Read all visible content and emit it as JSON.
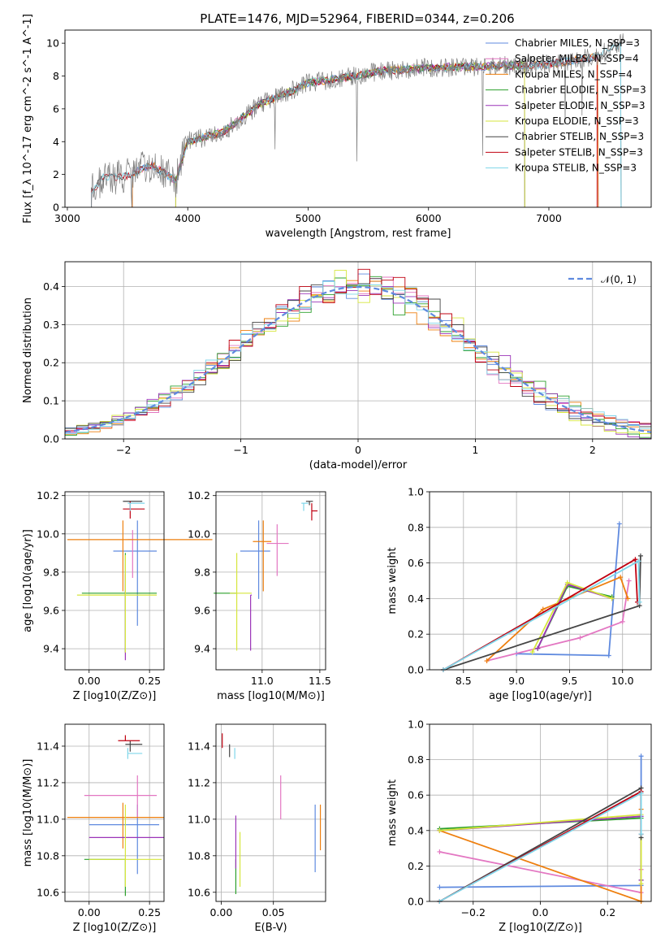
{
  "title": "PLATE=1476, MJD=52964, FIBERID=0344, z=0.206",
  "colors": {
    "chabrier_miles": "#5f8adf",
    "salpeter_miles": "#e377c2",
    "kroupa_miles": "#ee7f0e",
    "chabrier_elodie": "#2ca02c",
    "salpeter_elodie": "#9b34b8",
    "kroupa_elodie": "#d6e63d",
    "chabrier_stelib": "#454545",
    "salpeter_stelib": "#c00010",
    "kroupa_stelib": "#7fd6ea",
    "data": "#7f7f7f"
  },
  "chart_data": [
    {
      "id": "spectrum",
      "type": "line",
      "xlabel": "wavelength [Angstrom, rest frame]",
      "ylabel": "Flux [f_λ 10^-17 erg cm^-2 s^-1 A^-1]",
      "xlim": [
        2980,
        7850
      ],
      "ylim": [
        0,
        10.8
      ],
      "xticks": [
        3000,
        4000,
        5000,
        6000,
        7000
      ],
      "yticks": [
        0,
        2,
        4,
        6,
        8,
        10
      ],
      "continuum": [
        [
          3200,
          1.0
        ],
        [
          3300,
          1.8
        ],
        [
          3500,
          1.9
        ],
        [
          3700,
          2.6
        ],
        [
          3900,
          1.6
        ],
        [
          4000,
          4.0
        ],
        [
          4300,
          4.6
        ],
        [
          4600,
          6.3
        ],
        [
          4900,
          7.2
        ],
        [
          5000,
          7.6
        ],
        [
          5300,
          7.9
        ],
        [
          5600,
          8.3
        ],
        [
          6000,
          8.5
        ],
        [
          6500,
          8.6
        ],
        [
          7000,
          8.7
        ],
        [
          7400,
          9.2
        ],
        [
          7600,
          10.0
        ]
      ],
      "legend": [
        {
          "label": "Chabrier MILES, N_SSP=3",
          "color_key": "chabrier_miles"
        },
        {
          "label": "Salpeter MILES, N_SSP=4",
          "color_key": "salpeter_miles"
        },
        {
          "label": "Kroupa MILES, N_SSP=4",
          "color_key": "kroupa_miles"
        },
        {
          "label": "Chabrier ELODIE, N_SSP=3",
          "color_key": "chabrier_elodie"
        },
        {
          "label": "Salpeter ELODIE, N_SSP=3",
          "color_key": "salpeter_elodie"
        },
        {
          "label": "Kroupa ELODIE, N_SSP=3",
          "color_key": "kroupa_elodie"
        },
        {
          "label": "Chabrier STELIB, N_SSP=3",
          "color_key": "chabrier_stelib"
        },
        {
          "label": "Salpeter STELIB, N_SSP=3",
          "color_key": "salpeter_stelib"
        },
        {
          "label": "Kroupa STELIB, N_SSP=3",
          "color_key": "kroupa_stelib"
        }
      ]
    },
    {
      "id": "residuals",
      "type": "line",
      "xlabel": "(data-model)/error",
      "ylabel": "Normed distribution",
      "xlim": [
        -2.5,
        2.5
      ],
      "ylim": [
        0,
        0.465
      ],
      "xticks": [
        -2,
        -1,
        0,
        1,
        2
      ],
      "yticks": [
        0.0,
        0.1,
        0.2,
        0.3,
        0.4
      ],
      "grid": true,
      "legend": [
        {
          "label": "𝒩(0, 1)",
          "color_key": "chabrier_miles",
          "style": "dashed"
        }
      ]
    },
    {
      "id": "age_vs_Z",
      "type": "scatter",
      "xlabel": "Z [log10(Z/Z⊙)]",
      "ylabel": "age [log10(age/yr)]",
      "xlim": [
        -0.1,
        0.31
      ],
      "ylim": [
        9.29,
        10.22
      ],
      "xticks": [
        0.0,
        0.25
      ],
      "yticks": [
        9.4,
        9.6,
        9.8,
        10.0,
        10.2
      ],
      "grid": true,
      "points": [
        {
          "k": "chabrier_miles",
          "x": 0.2,
          "xerr": [
            0.1,
            0.08
          ],
          "y": 9.91,
          "yerr": [
            0.39,
            0.16
          ]
        },
        {
          "k": "salpeter_miles",
          "x": 0.18,
          "xerr": [
            0.02,
            0.0
          ],
          "y": 9.97,
          "yerr": [
            0.2,
            0.05
          ]
        },
        {
          "k": "kroupa_miles",
          "x": 0.14,
          "xerr": [
            0.23,
            0.37
          ],
          "y": 9.97,
          "yerr": [
            0.27,
            0.1
          ]
        },
        {
          "k": "chabrier_elodie",
          "x": 0.15,
          "xerr": [
            0.18,
            0.13
          ],
          "y": 9.69,
          "yerr": [
            0.31,
            0.21
          ]
        },
        {
          "k": "salpeter_elodie",
          "x": 0.15,
          "xerr": [
            0.0,
            0.0
          ],
          "y": 9.69,
          "yerr": [
            0.35,
            0.1
          ]
        },
        {
          "k": "kroupa_elodie",
          "x": 0.15,
          "xerr": [
            0.2,
            0.13
          ],
          "y": 9.68,
          "yerr": [
            0.3,
            0.21
          ]
        },
        {
          "k": "chabrier_stelib",
          "x": 0.17,
          "xerr": [
            0.03,
            0.05
          ],
          "y": 10.17,
          "yerr": [
            0.01,
            0.0
          ]
        },
        {
          "k": "salpeter_stelib",
          "x": 0.17,
          "xerr": [
            0.03,
            0.06
          ],
          "y": 10.13,
          "yerr": [
            0.05,
            0.04
          ]
        },
        {
          "k": "kroupa_stelib",
          "x": 0.17,
          "xerr": [
            0.01,
            0.06
          ],
          "y": 10.16,
          "yerr": [
            0.04,
            0.0
          ]
        }
      ]
    },
    {
      "id": "age_vs_mass",
      "type": "scatter",
      "xlabel": "mass [log10(M/M⊙)]",
      "ylabel": "",
      "xlim": [
        10.6,
        11.55
      ],
      "ylim": [
        9.29,
        10.22
      ],
      "xticks": [
        11.0,
        11.5
      ],
      "yticks": [
        9.4,
        9.6,
        9.8,
        10.0,
        10.2
      ],
      "grid": true,
      "points": [
        {
          "k": "chabrier_miles",
          "x": 10.97,
          "xerr": [
            0.16,
            0.1
          ],
          "y": 9.91,
          "yerr": [
            0.25,
            0.16
          ]
        },
        {
          "k": "salpeter_miles",
          "x": 11.13,
          "xerr": [
            0.09,
            0.1
          ],
          "y": 9.95,
          "yerr": [
            0.17,
            0.1
          ]
        },
        {
          "k": "kroupa_miles",
          "x": 11.01,
          "xerr": [
            0.09,
            0.07
          ],
          "y": 9.96,
          "yerr": [
            0.26,
            0.11
          ]
        },
        {
          "k": "chabrier_elodie",
          "x": 10.78,
          "xerr": [
            0.2,
            0.0
          ],
          "y": 9.69,
          "yerr": [
            0.0,
            0.0
          ]
        },
        {
          "k": "salpeter_elodie",
          "x": 10.9,
          "xerr": [
            0.0,
            0.01
          ],
          "y": 9.68,
          "yerr": [
            0.29,
            0.0
          ]
        },
        {
          "k": "kroupa_elodie",
          "x": 10.78,
          "xerr": [
            0.06,
            0.13
          ],
          "y": 9.69,
          "yerr": [
            0.3,
            0.21
          ]
        },
        {
          "k": "chabrier_stelib",
          "x": 11.41,
          "xerr": [
            0.03,
            0.03
          ],
          "y": 10.17,
          "yerr": [
            0.02,
            0.0
          ]
        },
        {
          "k": "salpeter_stelib",
          "x": 11.43,
          "xerr": [
            0.0,
            0.05
          ],
          "y": 10.12,
          "yerr": [
            0.05,
            0.04
          ]
        },
        {
          "k": "kroupa_stelib",
          "x": 11.36,
          "xerr": [
            0.02,
            0.04
          ],
          "y": 10.16,
          "yerr": [
            0.04,
            0.0
          ]
        }
      ]
    },
    {
      "id": "weight_vs_age",
      "type": "line",
      "xlabel": "age [log10(age/yr)]",
      "ylabel": "mass weight",
      "xlim": [
        8.18,
        10.27
      ],
      "ylim": [
        0,
        1.0
      ],
      "xticks": [
        8.5,
        9.0,
        9.5,
        10.0
      ],
      "yticks": [
        0.0,
        0.2,
        0.4,
        0.6,
        0.8,
        1.0
      ],
      "grid": true,
      "series": [
        {
          "k": "chabrier_miles",
          "x": [
            9.0,
            9.87,
            9.97
          ],
          "y": [
            0.09,
            0.08,
            0.82
          ]
        },
        {
          "k": "salpeter_miles",
          "x": [
            8.72,
            9.6,
            10.0,
            10.06
          ],
          "y": [
            0.05,
            0.18,
            0.27,
            0.5
          ]
        },
        {
          "k": "kroupa_miles",
          "x": [
            8.72,
            9.25,
            9.98,
            10.05
          ],
          "y": [
            0.05,
            0.34,
            0.52,
            0.4
          ]
        },
        {
          "k": "chabrier_elodie",
          "x": [
            9.2,
            9.48,
            9.9
          ],
          "y": [
            0.12,
            0.47,
            0.41
          ]
        },
        {
          "k": "salpeter_elodie",
          "x": [
            9.2,
            9.48,
            9.9
          ],
          "y": [
            0.12,
            0.48,
            0.4
          ]
        },
        {
          "k": "kroupa_elodie",
          "x": [
            9.15,
            9.48,
            9.9
          ],
          "y": [
            0.1,
            0.49,
            0.4
          ]
        },
        {
          "k": "chabrier_stelib",
          "x": [
            8.31,
            10.16,
            10.17
          ],
          "y": [
            0.0,
            0.36,
            0.64
          ]
        },
        {
          "k": "salpeter_stelib",
          "x": [
            8.31,
            10.12,
            10.14
          ],
          "y": [
            0.0,
            0.62,
            0.38
          ]
        },
        {
          "k": "kroupa_stelib",
          "x": [
            8.31,
            10.15,
            10.16
          ],
          "y": [
            0.0,
            0.61,
            0.38
          ]
        }
      ]
    },
    {
      "id": "mass_vs_Z",
      "type": "scatter",
      "xlabel": "Z [log10(Z/Z⊙)]",
      "ylabel": "mass [log10(M/M⊙)]",
      "xlim": [
        -0.1,
        0.31
      ],
      "ylim": [
        10.55,
        11.52
      ],
      "xticks": [
        0.0,
        0.25
      ],
      "yticks": [
        10.6,
        10.8,
        11.0,
        11.2,
        11.4
      ],
      "grid": true,
      "points": [
        {
          "k": "chabrier_miles",
          "x": 0.2,
          "xerr": [
            0.2,
            0.09
          ],
          "y": 10.97,
          "yerr": [
            0.27,
            0.11
          ]
        },
        {
          "k": "salpeter_miles",
          "x": 0.2,
          "xerr": [
            0.22,
            0.08
          ],
          "y": 11.13,
          "yerr": [
            0.12,
            0.11
          ]
        },
        {
          "k": "kroupa_miles",
          "x": 0.14,
          "xerr": [
            0.23,
            0.17
          ],
          "y": 11.01,
          "yerr": [
            0.17,
            0.08
          ]
        },
        {
          "k": "chabrier_elodie",
          "x": 0.15,
          "xerr": [
            0.17,
            0.0
          ],
          "y": 10.78,
          "yerr": [
            0.2,
            0.0
          ]
        },
        {
          "k": "salpeter_elodie",
          "x": 0.2,
          "xerr": [
            0.2,
            0.11
          ],
          "y": 10.9,
          "yerr": [
            0.0,
            0.0
          ]
        },
        {
          "k": "kroupa_elodie",
          "x": 0.15,
          "xerr": [
            0.15,
            0.15
          ],
          "y": 10.78,
          "yerr": [
            0.15,
            0.3
          ]
        },
        {
          "k": "chabrier_stelib",
          "x": 0.17,
          "xerr": [
            0.02,
            0.05
          ],
          "y": 11.41,
          "yerr": [
            0.04,
            0.02
          ]
        },
        {
          "k": "salpeter_stelib",
          "x": 0.15,
          "xerr": [
            0.03,
            0.06
          ],
          "y": 11.43,
          "yerr": [
            0.0,
            0.03
          ]
        },
        {
          "k": "kroupa_stelib",
          "x": 0.16,
          "xerr": [
            0.0,
            0.06
          ],
          "y": 11.36,
          "yerr": [
            0.03,
            0.03
          ]
        }
      ]
    },
    {
      "id": "mass_vs_ebv",
      "type": "scatter",
      "xlabel": "E(B-V)",
      "ylabel": "",
      "xlim": [
        -0.005,
        0.1
      ],
      "ylim": [
        10.55,
        11.52
      ],
      "xticks": [
        0.0,
        0.05
      ],
      "yticks": [
        10.6,
        10.8,
        11.0,
        11.2,
        11.4
      ],
      "grid": true,
      "points": [
        {
          "k": "chabrier_miles",
          "x": 0.09,
          "xerr": [
            0,
            0
          ],
          "y": 10.97,
          "yerr": [
            0.26,
            0.11
          ]
        },
        {
          "k": "salpeter_miles",
          "x": 0.057,
          "xerr": [
            0,
            0
          ],
          "y": 11.13,
          "yerr": [
            0.13,
            0.11
          ]
        },
        {
          "k": "kroupa_miles",
          "x": 0.095,
          "xerr": [
            0,
            0
          ],
          "y": 11.01,
          "yerr": [
            0.18,
            0.07
          ]
        },
        {
          "k": "chabrier_elodie",
          "x": 0.014,
          "xerr": [
            0,
            0
          ],
          "y": 10.78,
          "yerr": [
            0.19,
            0.0
          ]
        },
        {
          "k": "salpeter_elodie",
          "x": 0.014,
          "xerr": [
            0,
            0
          ],
          "y": 10.9,
          "yerr": [
            0.17,
            0.12
          ]
        },
        {
          "k": "kroupa_elodie",
          "x": 0.018,
          "xerr": [
            0,
            0
          ],
          "y": 10.78,
          "yerr": [
            0.15,
            0.15
          ]
        },
        {
          "k": "chabrier_stelib",
          "x": 0.008,
          "xerr": [
            0,
            0
          ],
          "y": 11.41,
          "yerr": [
            0.07,
            0.0
          ]
        },
        {
          "k": "salpeter_stelib",
          "x": 0.001,
          "xerr": [
            0,
            0
          ],
          "y": 11.43,
          "yerr": [
            0.04,
            0.04
          ]
        },
        {
          "k": "kroupa_stelib",
          "x": 0.013,
          "xerr": [
            0,
            0
          ],
          "y": 11.36,
          "yerr": [
            0.03,
            0.03
          ]
        }
      ]
    },
    {
      "id": "weight_vs_Z",
      "type": "line",
      "xlabel": "Z [log10(Z/Z⊙)]",
      "ylabel": "mass weight",
      "xlim": [
        -0.33,
        0.33
      ],
      "ylim": [
        0,
        1.0
      ],
      "xticks": [
        -0.2,
        0.0,
        0.2
      ],
      "yticks": [
        0.0,
        0.2,
        0.4,
        0.6,
        0.8,
        1.0
      ],
      "grid": true,
      "series": [
        {
          "k": "chabrier_miles",
          "x": [
            -0.3,
            0.3,
            0.3
          ],
          "y": [
            0.08,
            0.09,
            0.82
          ]
        },
        {
          "k": "salpeter_miles",
          "x": [
            -0.3,
            0.3,
            0.3
          ],
          "y": [
            0.28,
            0.05,
            0.18
          ]
        },
        {
          "k": "kroupa_miles",
          "x": [
            -0.3,
            0.3,
            0.3
          ],
          "y": [
            0.4,
            0.0,
            0.52
          ]
        },
        {
          "k": "chabrier_elodie",
          "x": [
            -0.3,
            0.3,
            0.3
          ],
          "y": [
            0.41,
            0.47,
            0.12
          ]
        },
        {
          "k": "salpeter_elodie",
          "x": [
            -0.3,
            0.3,
            0.3
          ],
          "y": [
            0.4,
            0.48,
            0.12
          ]
        },
        {
          "k": "kroupa_elodie",
          "x": [
            -0.3,
            0.3,
            0.3
          ],
          "y": [
            0.4,
            0.49,
            0.1
          ]
        },
        {
          "k": "chabrier_stelib",
          "x": [
            -0.3,
            0.3,
            0.3
          ],
          "y": [
            0.0,
            0.64,
            0.36
          ]
        },
        {
          "k": "salpeter_stelib",
          "x": [
            -0.3,
            0.3,
            0.3
          ],
          "y": [
            0.0,
            0.62,
            0.38
          ]
        },
        {
          "k": "kroupa_stelib",
          "x": [
            -0.3,
            0.3,
            0.3
          ],
          "y": [
            0.0,
            0.61,
            0.38
          ]
        }
      ]
    }
  ]
}
